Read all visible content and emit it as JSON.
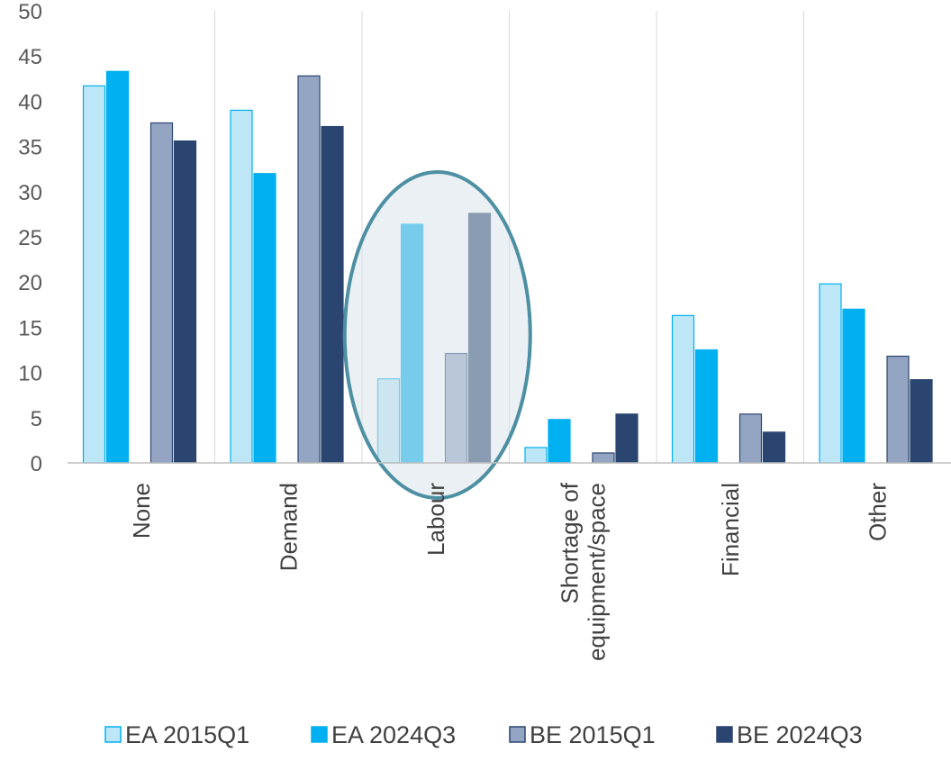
{
  "chart_data": {
    "type": "bar",
    "categories": [
      "None",
      "Demand",
      "Labour",
      "Shortage of equipment/space",
      "Financial",
      "Other"
    ],
    "category_lines": [
      [
        "None"
      ],
      [
        "Demand"
      ],
      [
        "Labour"
      ],
      [
        "Shortage of",
        "equipment/space"
      ],
      [
        "Financial"
      ],
      [
        "Other"
      ]
    ],
    "series": [
      {
        "name": "EA 2015Q1",
        "values": [
          41.7,
          39.0,
          9.3,
          1.7,
          16.3,
          19.8
        ],
        "fill": "#bde6f7",
        "stroke": "#00b0f0"
      },
      {
        "name": "EA 2024Q3",
        "values": [
          43.3,
          32.0,
          26.4,
          4.8,
          12.5,
          17.0
        ],
        "fill": "#00b0f0",
        "stroke": "#00b0f0"
      },
      {
        "name": "BE 2015Q1",
        "values": [
          37.6,
          42.8,
          12.1,
          1.1,
          5.4,
          11.8
        ],
        "fill": "#94a5c3",
        "stroke": "#2a4570"
      },
      {
        "name": "BE 2024Q3",
        "values": [
          35.6,
          37.2,
          27.6,
          5.4,
          3.4,
          9.2
        ],
        "fill": "#2a4570",
        "stroke": "#2a4570"
      }
    ],
    "ylim": [
      0,
      50
    ],
    "yticks": [
      0,
      5,
      10,
      15,
      20,
      25,
      30,
      35,
      40,
      45,
      50
    ],
    "grid": "vertical category separators",
    "legend_position": "bottom",
    "annotation": {
      "shape": "ellipse",
      "highlights": "Labour",
      "fill": "#d8e4ea",
      "stroke": "#4d8fa3"
    },
    "title": "",
    "xlabel": "",
    "ylabel": ""
  }
}
